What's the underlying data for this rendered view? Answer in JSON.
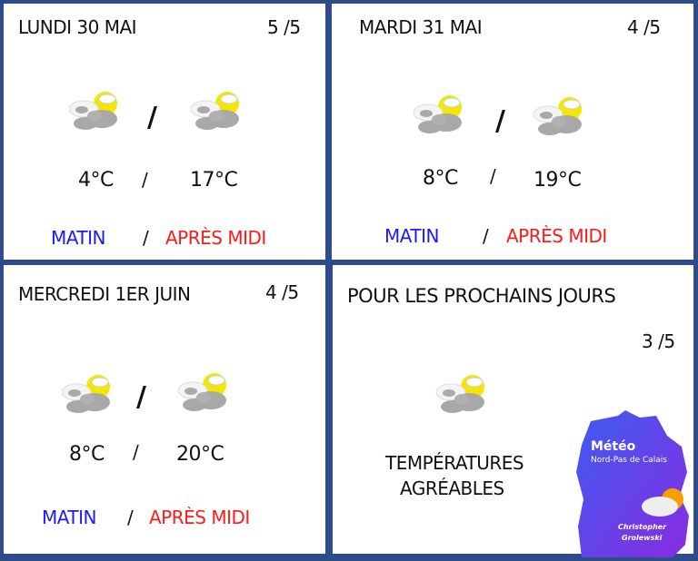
{
  "days": [
    {
      "title": "LUNDI 30 MAI",
      "rating": "5 /5",
      "morning_temp": "4°C",
      "afternoon_temp": "17°C",
      "sep": "/",
      "morning_label": "MATIN",
      "afternoon_label": "APRÈS MIDI",
      "icon": "sun-behind-clouds-icon"
    },
    {
      "title": "MARDI 31 MAI",
      "rating": "4 /5",
      "morning_temp": "8°C",
      "afternoon_temp": "19°C",
      "sep": "/",
      "morning_label": "MATIN",
      "afternoon_label": "APRÈS MIDI",
      "icon": "sun-behind-clouds-icon"
    },
    {
      "title": "MERCREDI 1ER JUIN",
      "rating": "4 /5",
      "morning_temp": "8°C",
      "afternoon_temp": "20°C",
      "sep": "/",
      "morning_label": "MATIN",
      "afternoon_label": "APRÈS MIDI",
      "icon": "sun-behind-clouds-icon"
    }
  ],
  "outlook": {
    "title": "POUR LES PROCHAINS JOURS",
    "rating": "3 /5",
    "line1": "TEMPÉRATURES",
    "line2": "AGRÉABLES"
  },
  "logo": {
    "title": "Météo",
    "subtitle": "Nord-Pas de Calais",
    "author1": "Christopher",
    "author2": "Grolewski"
  },
  "colors": {
    "border": "#2e4b8a",
    "morning": "#1a1aff",
    "afternoon": "#ff1a1a",
    "sun": "#f5e600"
  }
}
